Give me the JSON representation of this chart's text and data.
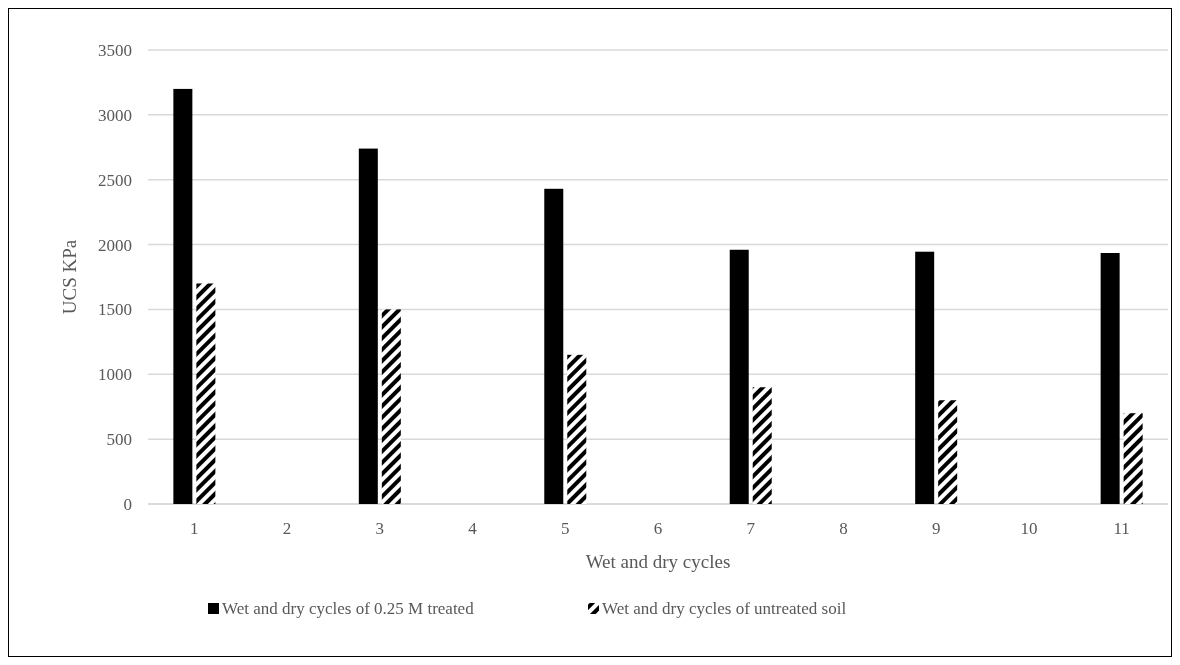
{
  "chart_data": {
    "type": "bar",
    "xlabel": "Wet and dry cycles",
    "ylabel": "UCS KPa",
    "categories": [
      "1",
      "2",
      "3",
      "4",
      "5",
      "6",
      "7",
      "8",
      "9",
      "10",
      "11"
    ],
    "series": [
      {
        "name": "Wet and dry cycles of 0.25 M treated",
        "color": "#000000",
        "values": [
          3200,
          null,
          2740,
          null,
          2430,
          null,
          1960,
          null,
          1945,
          null,
          1935
        ]
      },
      {
        "name": "Wet and dry cycles of untreated soil",
        "color": "#000000",
        "values": [
          1700,
          null,
          1500,
          null,
          1150,
          null,
          900,
          null,
          800,
          null,
          700
        ]
      }
    ],
    "ylim": [
      0,
      3500
    ],
    "yticks": [
      0,
      500,
      1000,
      1500,
      2000,
      2500,
      3000,
      3500
    ],
    "grid": "y",
    "legend": "bottom"
  }
}
